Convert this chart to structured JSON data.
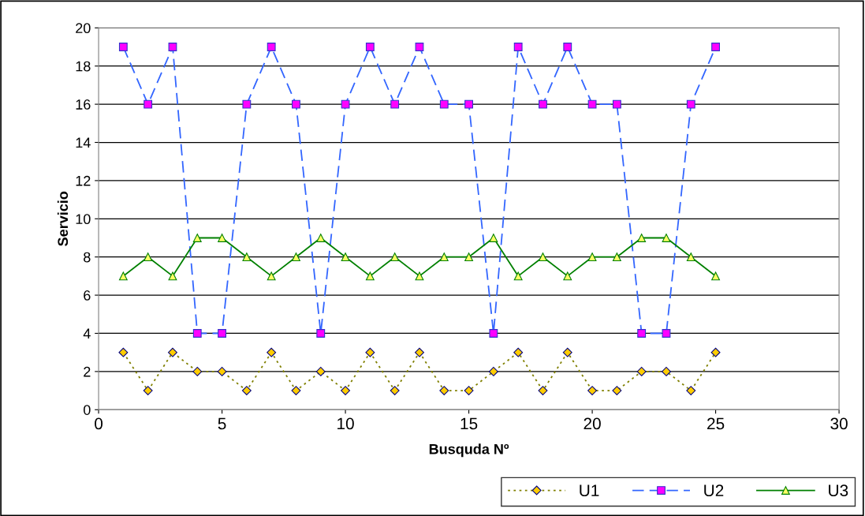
{
  "chart_data": {
    "type": "line",
    "xlabel": "Busquda Nº",
    "ylabel": "Servicio",
    "x": [
      1,
      2,
      3,
      4,
      5,
      6,
      7,
      8,
      9,
      10,
      11,
      12,
      13,
      14,
      15,
      16,
      17,
      18,
      19,
      20,
      21,
      22,
      23,
      24,
      25
    ],
    "series": [
      {
        "name": "U1",
        "color": "#808000",
        "marker": "diamond",
        "line_style": "dotted",
        "values": [
          3,
          1,
          3,
          2,
          2,
          1,
          3,
          1,
          2,
          1,
          3,
          1,
          3,
          1,
          1,
          2,
          3,
          1,
          3,
          1,
          1,
          2,
          2,
          1,
          3
        ]
      },
      {
        "name": "U2",
        "color": "#3366ff",
        "marker": "square",
        "line_style": "dashed",
        "values": [
          19,
          16,
          19,
          4,
          4,
          16,
          19,
          16,
          4,
          16,
          19,
          16,
          19,
          16,
          16,
          4,
          19,
          16,
          19,
          16,
          16,
          4,
          4,
          16,
          19
        ]
      },
      {
        "name": "U3",
        "color": "#008000",
        "marker": "triangle",
        "line_style": "solid",
        "values": [
          7,
          8,
          7,
          9,
          9,
          8,
          7,
          8,
          9,
          8,
          7,
          8,
          7,
          8,
          8,
          9,
          7,
          8,
          7,
          8,
          8,
          9,
          9,
          8,
          7
        ]
      }
    ],
    "xlim": [
      0,
      30
    ],
    "xticks": [
      0,
      5,
      10,
      15,
      20,
      25,
      30
    ],
    "ylim": [
      0,
      20
    ],
    "yticks": [
      0,
      2,
      4,
      6,
      8,
      10,
      12,
      14,
      16,
      18,
      20
    ],
    "grid": "y",
    "legend": "bottom right"
  }
}
